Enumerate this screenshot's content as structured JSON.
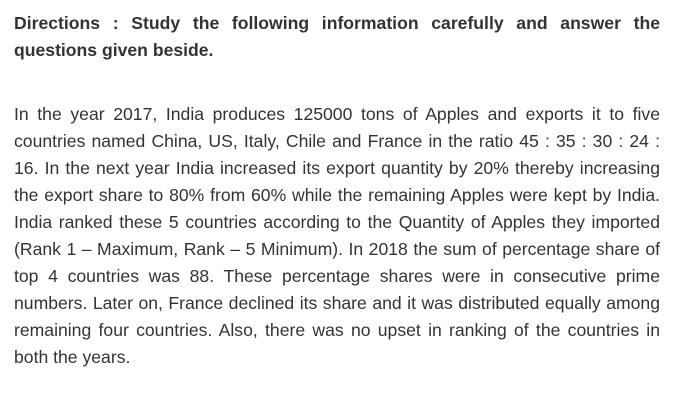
{
  "directions": {
    "text": "Directions : Study the following information carefully and answer the questions given beside."
  },
  "passage": {
    "text": "In the year 2017, India produces 125000 tons of Apples and exports it to five countries named China, US, Italy, Chile and France in the ratio 45 : 35 : 30 : 24 : 16. In the next year India increased its export quantity by 20% thereby increasing the export share to 80% from 60% while the remaining Apples were kept by India. India ranked these 5 countries according to the Quantity of Apples they imported (Rank 1 – Maximum, Rank – 5 Minimum). In 2018 the sum of percentage share of top 4 countries was 88. These percentage shares were in consecutive prime numbers. Later on, France declined its share and it was distributed equally among remaining four countries. Also, there was no upset in ranking of the countries in both the years."
  }
}
